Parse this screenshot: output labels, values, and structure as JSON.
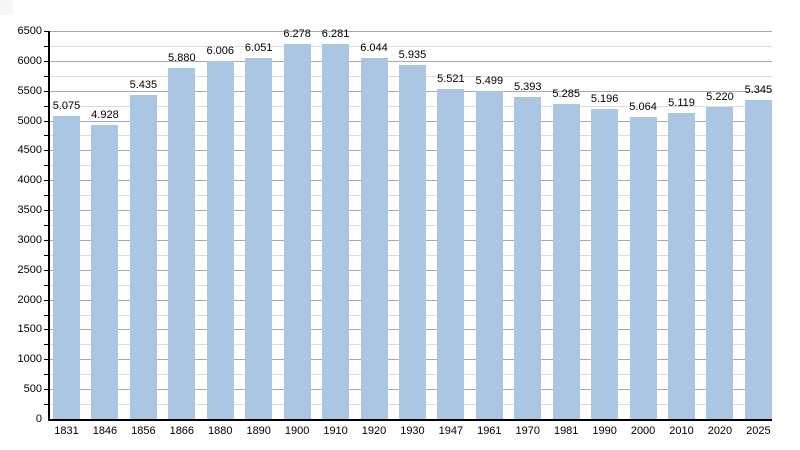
{
  "chart_data": {
    "type": "bar",
    "categories": [
      "1831",
      "1846",
      "1856",
      "1866",
      "1880",
      "1890",
      "1900",
      "1910",
      "1920",
      "1930",
      "1947",
      "1961",
      "1970",
      "1981",
      "1990",
      "2000",
      "2010",
      "2020",
      "2025"
    ],
    "values": [
      5075,
      4928,
      5435,
      5880,
      6006,
      6051,
      6278,
      6281,
      6044,
      5935,
      5521,
      5499,
      5393,
      5285,
      5196,
      5064,
      5119,
      5220,
      5345
    ],
    "value_labels": [
      "5.075",
      "4.928",
      "5.435",
      "5.880",
      "6.006",
      "6.051",
      "6.278",
      "6.281",
      "6.044",
      "5.935",
      "5.521",
      "5.499",
      "5.393",
      "5.285",
      "5.196",
      "5.064",
      "5.119",
      "5.220",
      "5.345"
    ],
    "y_tick_labels": [
      "0",
      "500",
      "1000",
      "1500",
      "2000",
      "2500",
      "3000",
      "3500",
      "4000",
      "4500",
      "5000",
      "5500",
      "6000",
      "6500"
    ],
    "ylim": [
      0,
      6500
    ],
    "y_major_step": 500,
    "y_minor_step": 250,
    "grid": "horizontal major and minor, no vertical",
    "legend": "none",
    "colors": {
      "bar": "#abc6e3",
      "major_grid": "#a9a9a9",
      "minor_grid": "#dcdcdc",
      "axis": "#000000",
      "text": "#000000",
      "background": "#ffffff"
    }
  }
}
